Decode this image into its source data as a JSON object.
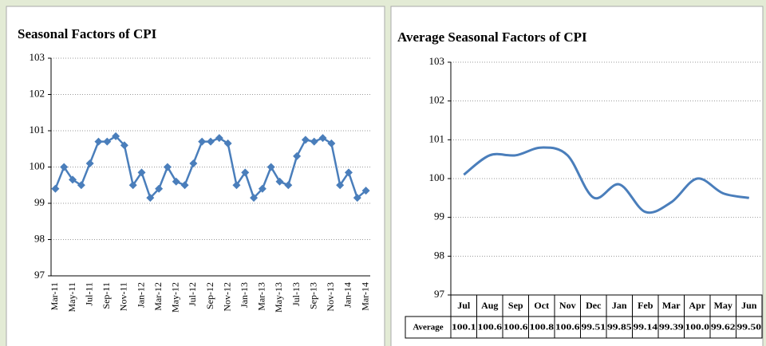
{
  "chart_data": [
    {
      "type": "line",
      "title": "Seasonal Factors of CPI",
      "categories": [
        "Mar-11",
        null,
        "May-11",
        null,
        "Jul-11",
        null,
        "Sep-11",
        null,
        "Nov-11",
        null,
        "Jan-12",
        null,
        "Mar-12",
        null,
        "May-12",
        null,
        "Jul-12",
        null,
        "Sep-12",
        null,
        "Nov-12",
        null,
        "Jan-13",
        null,
        "Mar-13",
        null,
        "May-13",
        null,
        "Jul-13",
        null,
        "Sep-13",
        null,
        "Nov-13",
        null,
        "Jan-14",
        null,
        "Mar-14"
      ],
      "values": [
        99.4,
        100.0,
        99.65,
        99.5,
        100.1,
        100.7,
        100.7,
        100.85,
        100.6,
        99.5,
        99.85,
        99.15,
        99.4,
        100.0,
        99.6,
        99.5,
        100.1,
        100.7,
        100.7,
        100.8,
        100.65,
        99.5,
        99.85,
        99.15,
        99.4,
        100.0,
        99.6,
        99.5,
        100.3,
        100.75,
        100.7,
        100.8,
        100.65,
        99.5,
        99.85,
        99.15,
        99.35
      ],
      "color": "#4a7ebb",
      "markers": true,
      "ylim": [
        97,
        103
      ],
      "yticks": [
        97,
        98,
        99,
        100,
        101,
        102,
        103
      ],
      "grid": true
    },
    {
      "type": "line",
      "title": "Average Seasonal Factors of CPI",
      "categories": [
        "Jul",
        "Aug",
        "Sep",
        "Oct",
        "Nov",
        "Dec",
        "Jan",
        "Feb",
        "Mar",
        "Apr",
        "May",
        "Jun"
      ],
      "series": [
        {
          "name": "Average",
          "color": "#4a7ebb",
          "values": [
            100.1,
            100.6,
            100.6,
            100.8,
            100.6,
            99.51,
            99.85,
            99.14,
            99.39,
            100.0,
            99.62,
            99.5
          ],
          "value_labels": [
            "100.1",
            "100.6",
            "100.6",
            "100.8",
            "100.6",
            "99.51",
            "99.85",
            "99.14",
            "99.39",
            "100.0",
            "99.62",
            "99.50"
          ]
        }
      ],
      "smooth": true,
      "data_table": true,
      "ylim": [
        97,
        103
      ],
      "yticks": [
        97,
        98,
        99,
        100,
        101,
        102,
        103
      ],
      "grid": true
    }
  ]
}
